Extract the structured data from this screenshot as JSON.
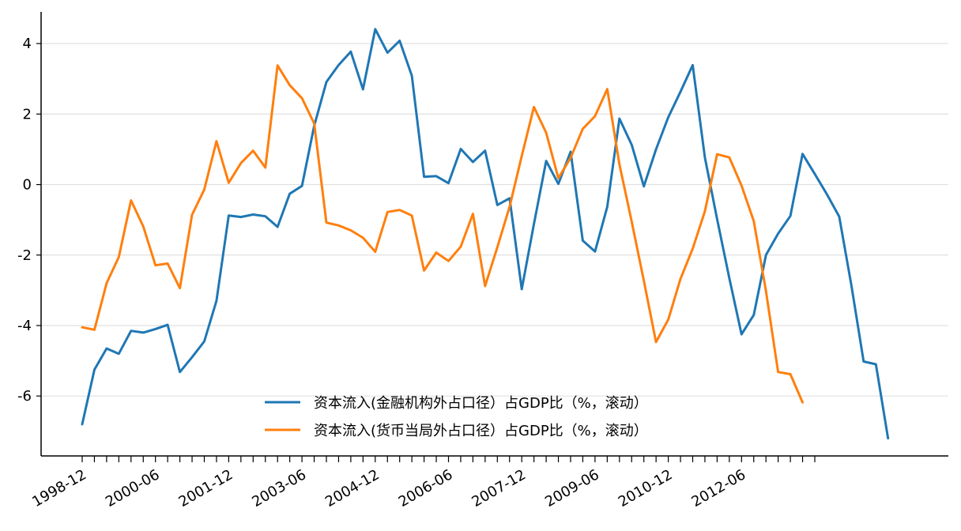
{
  "chart_data": {
    "type": "line",
    "x": [
      "1998-12",
      "1999-03",
      "1999-06",
      "1999-09",
      "1999-12",
      "2000-03",
      "2000-06",
      "2000-09",
      "2000-12",
      "2001-03",
      "2001-06",
      "2001-09",
      "2001-12",
      "2002-03",
      "2002-06",
      "2002-09",
      "2002-12",
      "2003-03",
      "2003-06",
      "2003-09",
      "2003-12",
      "2004-03",
      "2004-06",
      "2004-09",
      "2004-12",
      "2005-03",
      "2005-06",
      "2005-09",
      "2005-12",
      "2006-03",
      "2006-06",
      "2006-09",
      "2006-12",
      "2007-03",
      "2007-06",
      "2007-09",
      "2007-12",
      "2008-03",
      "2008-06",
      "2008-09",
      "2008-12",
      "2009-03",
      "2009-06",
      "2009-09",
      "2009-12",
      "2010-03",
      "2010-06",
      "2010-09",
      "2010-12",
      "2011-03",
      "2011-06",
      "2011-09",
      "2011-12",
      "2012-03",
      "2012-06",
      "2012-09",
      "2012-12",
      "2013-03",
      "2013-06",
      "2013-09",
      "2013-12",
      "2014-03",
      "2014-06",
      "2014-09",
      "2014-12",
      "2015-03",
      "2015-06",
      "2015-09"
    ],
    "x_tick_labels": [
      "1998-12",
      "2000-06",
      "2001-12",
      "2003-06",
      "2004-12",
      "2006-06",
      "2007-12",
      "2009-06",
      "2010-12",
      "2012-06"
    ],
    "x_tick_label_indices": [
      0,
      6,
      12,
      18,
      24,
      30,
      36,
      42,
      48,
      54
    ],
    "minor_tick_count": 61,
    "y_ticks": [
      4,
      2,
      0,
      -2,
      -4,
      -6
    ],
    "ylim": [
      -7.7,
      4.9
    ],
    "grid": "horizontal",
    "legend_position": "bottom-center",
    "title": "",
    "xlabel": "",
    "ylabel": "",
    "series": [
      {
        "name": "资本流入(金融机构外占口径）占GDP比（%，滚动）",
        "color": "#1f77b4",
        "values": [
          -6.8,
          -5.25,
          -4.65,
          -4.8,
          -4.15,
          -4.2,
          -4.1,
          -3.98,
          -5.32,
          -4.9,
          -4.45,
          -3.3,
          -0.88,
          -0.92,
          -0.85,
          -0.9,
          -1.2,
          -0.26,
          -0.04,
          1.67,
          2.91,
          3.39,
          3.77,
          2.7,
          4.41,
          3.74,
          4.08,
          3.09,
          0.22,
          0.24,
          0.04,
          1.01,
          0.64,
          0.96,
          -0.58,
          -0.39,
          -2.97,
          -1.12,
          0.67,
          0.02,
          0.93,
          -1.59,
          -1.9,
          -0.63,
          1.87,
          1.13,
          -0.05,
          1.0,
          1.91,
          2.63,
          3.39,
          0.77,
          -0.98,
          -2.65,
          -4.25,
          -3.7,
          -2.0,
          -1.39,
          -0.89,
          0.87,
          0.3,
          -0.28,
          -0.91,
          -2.86,
          -5.02,
          -5.1,
          -7.2,
          null
        ]
      },
      {
        "name": "资本流入(货币当局外占口径）占GDP比（%，滚动）",
        "color": "#ff7f0e",
        "values": [
          -4.05,
          -4.12,
          -2.8,
          -2.06,
          -0.45,
          -1.19,
          -2.29,
          -2.24,
          -2.94,
          -0.86,
          -0.14,
          1.23,
          0.05,
          0.61,
          0.96,
          0.48,
          3.38,
          2.82,
          2.45,
          1.73,
          -1.08,
          -1.16,
          -1.3,
          -1.51,
          -1.91,
          -0.78,
          -0.72,
          -0.88,
          -2.44,
          -1.93,
          -2.17,
          -1.76,
          -0.83,
          -2.88,
          -1.78,
          -0.63,
          0.81,
          2.2,
          1.47,
          0.18,
          0.76,
          1.58,
          1.94,
          2.71,
          0.57,
          -1.05,
          -2.73,
          -4.47,
          -3.83,
          -2.68,
          -1.82,
          -0.76,
          0.86,
          0.77,
          -0.03,
          -1.04,
          -3.02,
          -5.32,
          -5.38,
          -6.18,
          null,
          null,
          null,
          null,
          null,
          null,
          null,
          null
        ]
      }
    ]
  }
}
